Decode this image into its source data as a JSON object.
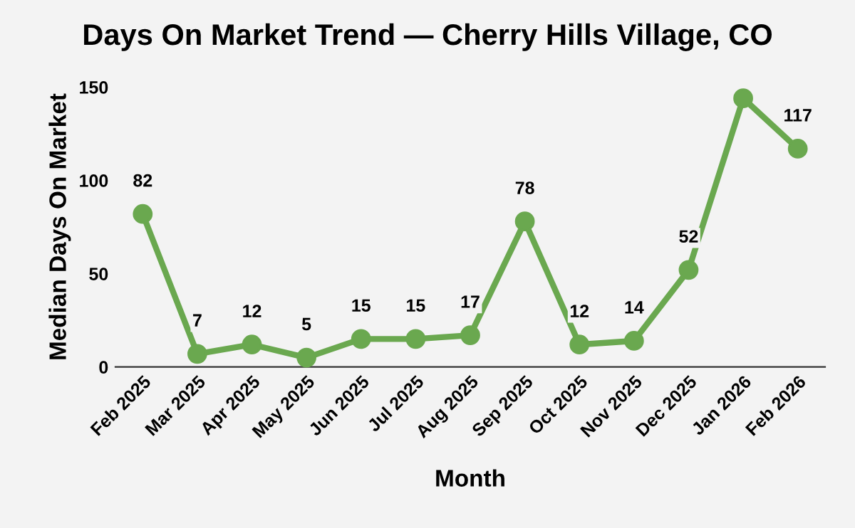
{
  "chart_data": {
    "type": "line",
    "title": "Days On Market Trend — Cherry Hills Village, CO",
    "xlabel": "Month",
    "ylabel": "Median Days On Market",
    "categories": [
      "Feb 2025",
      "Mar 2025",
      "Apr 2025",
      "May 2025",
      "Jun 2025",
      "Jul 2025",
      "Aug 2025",
      "Sep 2025",
      "Oct 2025",
      "Nov 2025",
      "Dec 2025",
      "Jan 2026",
      "Feb 2026"
    ],
    "series": [
      {
        "color": "#6aa84f",
        "values": [
          82,
          7,
          12,
          5,
          15,
          15,
          17,
          78,
          12,
          14,
          52,
          144,
          117
        ],
        "value_labels": [
          "82",
          "7",
          "12",
          "5",
          "15",
          "15",
          "17",
          "78",
          "12",
          "14",
          "52",
          null,
          "117"
        ]
      }
    ],
    "ylim": [
      0,
      150
    ],
    "yticks": [
      0,
      50,
      100,
      150
    ],
    "grid": false,
    "legend": false,
    "marker": "circle",
    "line_style": "solid"
  }
}
